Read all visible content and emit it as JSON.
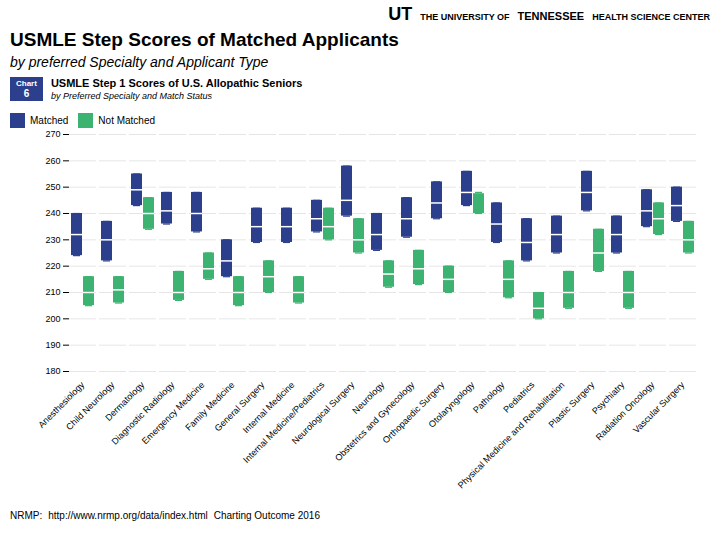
{
  "chart_data": {
    "type": "box",
    "title": "USMLE Step Scores of Matched Applicants",
    "subtitle": "by preferred Specialty and Applicant Type",
    "annotations": [
      "UT",
      "THE UNIVERSITY OF",
      "TENNESSEE",
      "HEALTH SCIENCE CENTER",
      "Chart",
      "6",
      "USMLE Step 1 Scores of U.S. Allopathic Seniors",
      "by Preferred Specialty and Match Status",
      "NRMP:",
      "http://www.nrmp.org/data/index.html",
      "Charting Outcome 2016"
    ],
    "categories": [
      "Anesthesiology",
      "Child Neurology",
      "Dermatology",
      "Diagnostic Radiology",
      "Emergency Medicine",
      "Family Medicine",
      "General Surgery",
      "Internal Medicine",
      "Internal Medicine/Pediatrics",
      "Neurological Surgery",
      "Neurology",
      "Obstetrics and Gynecology",
      "Orthopaedic Surgery",
      "Otolaryngology",
      "Pathology",
      "Pediatrics",
      "Physical Medicine and Rehabilitation",
      "Plastic Surgery",
      "Psychiatry",
      "Radiation Oncology",
      "Vascular Surgery"
    ],
    "series": [
      {
        "name": "Matched",
        "color": "#2B3F8C",
        "median": [
          232,
          230,
          249,
          241,
          240,
          222,
          235,
          235,
          238,
          245,
          232,
          238,
          244,
          248,
          236,
          229,
          232,
          248,
          232,
          241,
          243
        ],
        "q1": [
          224,
          222,
          243,
          236,
          233,
          216,
          229,
          229,
          233,
          239,
          226,
          231,
          238,
          243,
          229,
          222,
          225,
          241,
          225,
          235,
          237
        ],
        "q3": [
          240,
          237,
          255,
          248,
          248,
          230,
          242,
          242,
          245,
          258,
          240,
          246,
          252,
          256,
          244,
          238,
          239,
          256,
          239,
          249,
          250
        ]
      },
      {
        "name": "Not Matched",
        "color": "#3CB371",
        "median": [
          210,
          211,
          240,
          210,
          219,
          210,
          216,
          210,
          235,
          230,
          217,
          219,
          215,
          248,
          215,
          204,
          210,
          225,
          210,
          238,
          230
        ],
        "q1": [
          205,
          206,
          234,
          207,
          215,
          205,
          210,
          206,
          230,
          225,
          212,
          213,
          210,
          240,
          208,
          200,
          204,
          218,
          204,
          232,
          225
        ],
        "q3": [
          216,
          216,
          246,
          218,
          225,
          216,
          222,
          216,
          242,
          238,
          222,
          226,
          220,
          248,
          222,
          210,
          218,
          234,
          218,
          244,
          237
        ]
      }
    ],
    "ylim": [
      180,
      270
    ],
    "yticks": [
      180,
      190,
      200,
      210,
      220,
      230,
      240,
      250,
      260,
      270
    ],
    "grid": true,
    "legend": "top"
  }
}
